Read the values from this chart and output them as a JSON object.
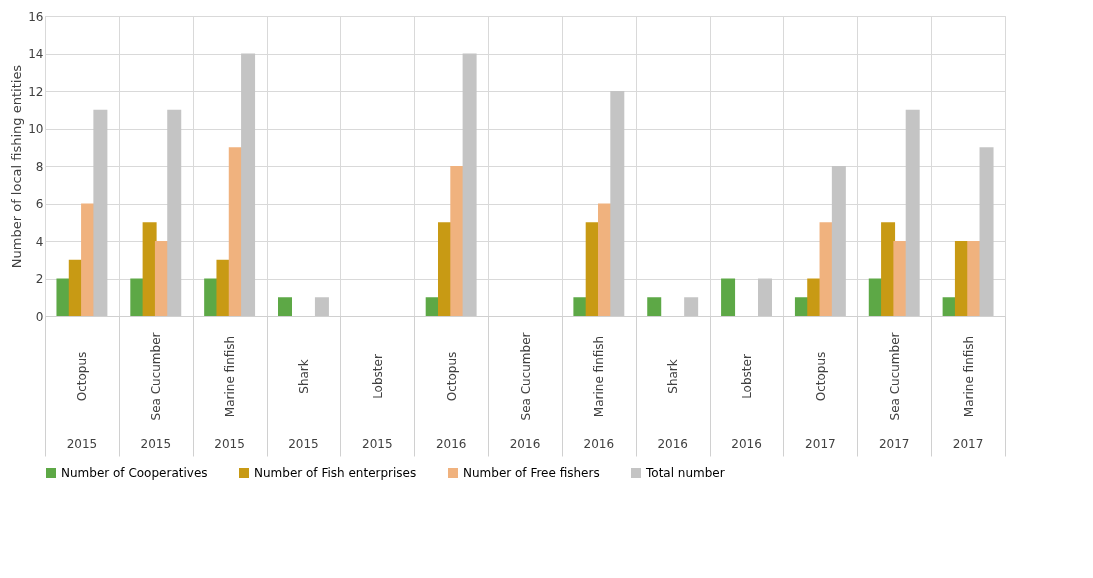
{
  "chart_data": {
    "type": "bar",
    "ylabel": "Number of local fishing entities",
    "categories": [
      "Octopus",
      "Sea Cucumber",
      "Marine finfish",
      "Shark",
      "Lobster",
      "Octopus",
      "Sea Cucumber",
      "Marine finfish",
      "Shark",
      "Lobster",
      "Octopus",
      "Sea Cucumber",
      "Marine finfish"
    ],
    "annotations": [
      "2015",
      "2015",
      "2015",
      "2015",
      "2015",
      "2016",
      "2016",
      "2016",
      "2016",
      "2016",
      "2017",
      "2017",
      "2017"
    ],
    "series": [
      {
        "name": "Number of Cooperatives",
        "color": "#5da846",
        "values": [
          2,
          2,
          2,
          1,
          0,
          1,
          0,
          1,
          1,
          2,
          1,
          2,
          1
        ]
      },
      {
        "name": "Number of Fish enterprises",
        "color": "#c89a14",
        "values": [
          3,
          5,
          3,
          0,
          0,
          5,
          0,
          5,
          0,
          0,
          2,
          5,
          4
        ]
      },
      {
        "name": "Number of Free fishers",
        "color": "#f0b27e",
        "values": [
          6,
          4,
          9,
          0,
          0,
          8,
          0,
          6,
          0,
          0,
          5,
          4,
          4
        ]
      },
      {
        "name": "Total number",
        "color": "#c4c4c4",
        "values": [
          11,
          11,
          14,
          1,
          0,
          14,
          0,
          12,
          1,
          2,
          8,
          11,
          9
        ]
      }
    ],
    "ylim": [
      0,
      16
    ],
    "yticks": [
      0,
      2,
      4,
      6,
      8,
      10,
      12,
      14,
      16
    ],
    "grid": true,
    "legend": "bottom"
  }
}
